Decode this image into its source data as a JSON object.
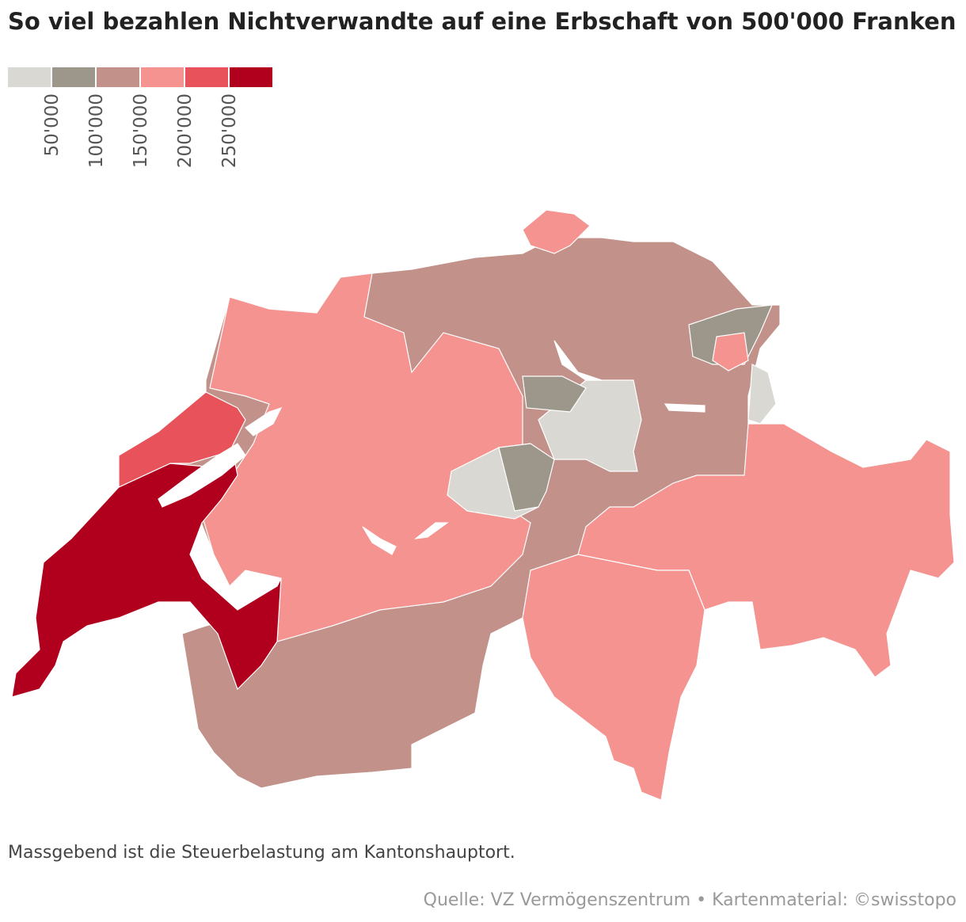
{
  "chart_data": {
    "type": "choropleth",
    "title": "So viel bezahlen Nichtverwandte auf eine Erbschaft von 500'000 Franken",
    "legend": {
      "colors": [
        "#d9d8d2",
        "#9c978a",
        "#c1918a",
        "#f49390",
        "#e8525a",
        "#b0001e"
      ],
      "ticks": [
        {
          "value": 50000,
          "label": "50'000"
        },
        {
          "value": 100000,
          "label": "100'000"
        },
        {
          "value": 150000,
          "label": "150'000"
        },
        {
          "value": 200000,
          "label": "200'000"
        },
        {
          "value": 250000,
          "label": "250'000"
        }
      ]
    },
    "note": "Massgebend ist die Steuerbelastung am Kantonshauptort.",
    "source": "Quelle: VZ Vermögenszentrum • Kartenmaterial: ©swisstopo"
  }
}
